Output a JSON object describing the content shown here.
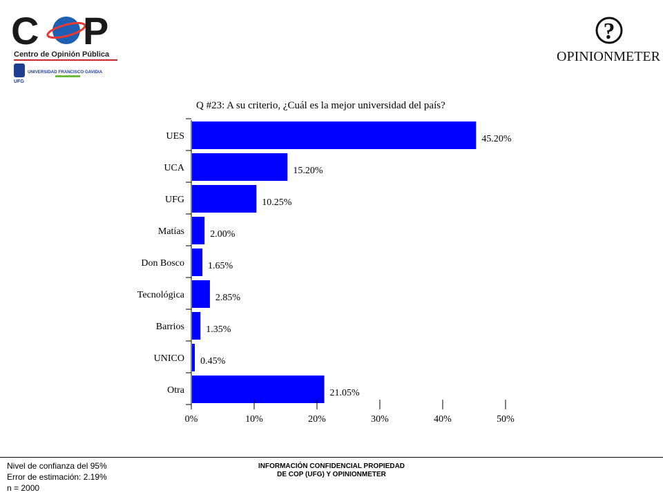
{
  "header": {
    "cop_logo_text": "COP",
    "cop_subtitle": "Centro de Opinión Pública",
    "ufg_name": "UNIVERSIDAD FRANCISCO GAVIDIA",
    "ufg_abbrev": "UFG",
    "opinionmeter_symbol": "?",
    "opinionmeter_text": "OPINIONMETER"
  },
  "chart_data": {
    "type": "bar",
    "orientation": "horizontal",
    "title": "Q #23: A su criterio, ¿Cuál es la mejor universidad del país?",
    "categories": [
      "UES",
      "UCA",
      "UFG",
      "Matías",
      "Don Bosco",
      "Tecnológica",
      "Barrios",
      "UNICO",
      "Otra"
    ],
    "values": [
      45.2,
      15.2,
      10.25,
      2.0,
      1.65,
      2.85,
      1.35,
      0.45,
      21.05
    ],
    "data_labels": [
      "45.20%",
      "15.20%",
      "10.25%",
      "2.00%",
      "1.65%",
      "2.85%",
      "1.35%",
      "0.45%",
      "21.05%"
    ],
    "xlim": [
      0,
      50
    ],
    "x_ticks": [
      0,
      10,
      20,
      30,
      40,
      50
    ],
    "x_tick_labels": [
      "0%",
      "10%",
      "20%",
      "30%",
      "40%",
      "50%"
    ],
    "bar_color": "#0000ff",
    "grid": false,
    "legend": "none"
  },
  "footer": {
    "confidence": "Nivel de confianza del 95%",
    "error": "Error de estimación: 2.19%",
    "n": "n = 2000",
    "confidential_line1": "INFORMACIÓN CONFIDENCIAL PROPIEDAD",
    "confidential_line2": "DE COP (UFG) Y OPINIONMETER"
  }
}
